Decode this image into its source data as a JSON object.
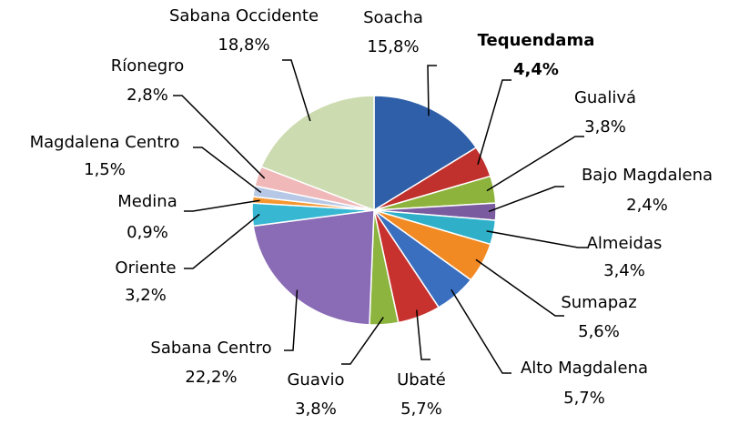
{
  "chart_data": {
    "type": "pie",
    "categories": [
      "Soacha",
      "Tequendama",
      "Gualivá",
      "Bajo Magdalena",
      "Almeidas",
      "Sumapaz",
      "Alto Magdalena",
      "Ubaté",
      "Guavio",
      "Sabana Centro",
      "Oriente",
      "Medina",
      "Magdalena Centro",
      "Ríonegro",
      "Sabana Occidente"
    ],
    "values": [
      15.8,
      4.4,
      3.8,
      2.4,
      3.4,
      5.6,
      5.7,
      5.7,
      3.8,
      22.2,
      3.2,
      0.9,
      1.5,
      2.8,
      18.8
    ],
    "value_labels": [
      "15,8%",
      "4,4%",
      "3,8%",
      "2,4%",
      "3,4%",
      "5,6%",
      "5,7%",
      "5,7%",
      "3,8%",
      "22,2%",
      "3,2%",
      "0,9%",
      "1,5%",
      "2,8%",
      "18,8%"
    ],
    "colors": [
      "#2e5fa8",
      "#c0302c",
      "#8db33c",
      "#7a5ba0",
      "#2fb0c8",
      "#f28a24",
      "#3a6fbf",
      "#c8322e",
      "#8cb43e",
      "#8a6bb5",
      "#38b7d2",
      "#f5962f",
      "#b7c8e6",
      "#f0b8b8",
      "#cddcb0"
    ],
    "bold_categories": [
      "Tequendama"
    ]
  }
}
